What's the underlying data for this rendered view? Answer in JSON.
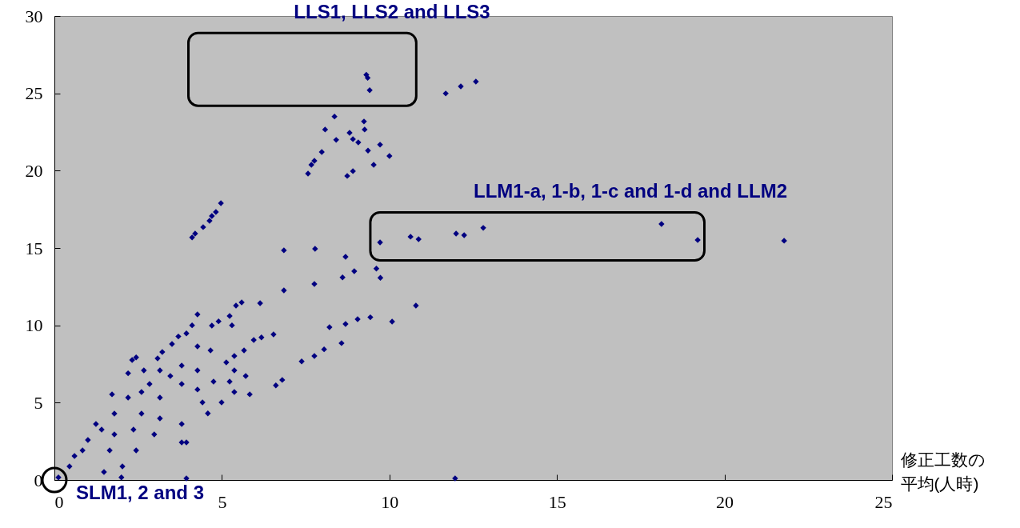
{
  "chart_data": {
    "type": "scatter",
    "xlabel": "修正工数の平均(人時)",
    "color": "#000080",
    "marker": "diamond",
    "grid": false,
    "xlim": [
      0,
      25
    ],
    "ylim": [
      0,
      30
    ],
    "xticks": [
      0,
      5,
      10,
      15,
      20,
      25
    ],
    "yticks": [
      0,
      5,
      10,
      15,
      20,
      25,
      30
    ],
    "annotations": [
      "LLS1, LLS2 and LLS3",
      "LLM1-a, 1-b, 1-c and 1-d and LLM2",
      "SLM1, 2 and 3"
    ],
    "x": [
      9.31,
      9.35,
      9.41,
      11.68,
      12.13,
      12.58,
      8.36,
      8.08,
      9.24,
      9.26,
      8.81,
      8.41,
      8.91,
      9.07,
      9.72,
      7.98,
      7.76,
      7.67,
      7.57,
      10.0,
      9.53,
      8.91,
      8.74,
      9.36,
      4.11,
      4.2,
      4.44,
      4.63,
      4.7,
      4.82,
      4.97,
      9.72,
      10.63,
      10.87,
      11.99,
      12.23,
      12.8,
      18.12,
      19.2,
      21.78,
      6.85,
      7.78,
      8.69,
      10.79,
      10.08,
      3.94,
      11.96,
      9.61,
      9.73,
      8.95,
      8.6,
      7.76,
      6.85,
      9.43,
      9.05,
      8.69,
      8.21,
      8.57,
      8.05,
      7.76,
      7.38,
      6.61,
      6.8,
      6.14,
      5.59,
      5.42,
      4.27,
      4.11,
      3.94,
      3.7,
      3.51,
      4.7,
      4.9,
      5.23,
      5.3,
      6.54,
      6.18,
      5.95,
      5.66,
      5.37,
      5.13,
      4.66,
      4.27,
      3.22,
      3.08,
      2.44,
      2.32,
      2.2,
      1.72,
      1.24,
      1.0,
      0.6,
      0.12,
      2.0,
      3.94,
      3.8,
      5.83,
      5.37,
      4.99,
      4.58,
      3.8,
      2.98,
      2.44,
      2.03,
      1.48,
      1.79,
      2.6,
      3.15,
      3.8,
      4.27,
      4.75,
      5.37,
      3.46,
      2.84,
      2.2,
      1.79,
      1.41,
      0.84,
      1.65,
      0.45,
      2.36,
      3.15,
      4.42,
      5.23,
      5.71,
      3.8,
      4.27,
      3.15,
      2.67,
      2.6
    ],
    "values": [
      26.2,
      26.0,
      25.2,
      24.99,
      25.45,
      25.76,
      23.5,
      22.66,
      23.18,
      22.66,
      22.45,
      21.99,
      22.04,
      21.83,
      21.68,
      21.21,
      20.64,
      20.38,
      19.81,
      20.95,
      20.38,
      19.97,
      19.66,
      21.3,
      15.68,
      15.93,
      16.35,
      16.76,
      17.07,
      17.33,
      17.9,
      15.36,
      15.73,
      15.57,
      15.93,
      15.83,
      16.3,
      16.55,
      15.52,
      15.47,
      14.85,
      14.95,
      14.43,
      11.28,
      10.24,
      0.1,
      0.1,
      13.67,
      13.07,
      13.5,
      13.1,
      12.67,
      12.26,
      10.52,
      10.4,
      10.09,
      9.88,
      8.85,
      8.45,
      8.02,
      7.67,
      6.12,
      6.47,
      11.43,
      11.48,
      11.28,
      10.71,
      10.0,
      9.48,
      9.28,
      8.79,
      9.98,
      10.26,
      10.6,
      10.0,
      9.41,
      9.22,
      9.05,
      8.38,
      8.02,
      7.6,
      8.38,
      8.64,
      8.28,
      7.86,
      7.93,
      7.76,
      6.9,
      5.54,
      3.62,
      2.59,
      1.55,
      0.17,
      0.17,
      2.43,
      2.43,
      5.54,
      5.69,
      5.02,
      4.31,
      3.62,
      2.95,
      1.91,
      0.88,
      0.52,
      2.95,
      4.29,
      5.33,
      6.21,
      5.85,
      6.36,
      7.09,
      6.72,
      6.21,
      5.33,
      4.29,
      3.26,
      1.91,
      1.91,
      0.88,
      3.26,
      3.98,
      5.02,
      6.36,
      6.72,
      7.4,
      7.09,
      7.09,
      7.09,
      5.69
    ]
  }
}
